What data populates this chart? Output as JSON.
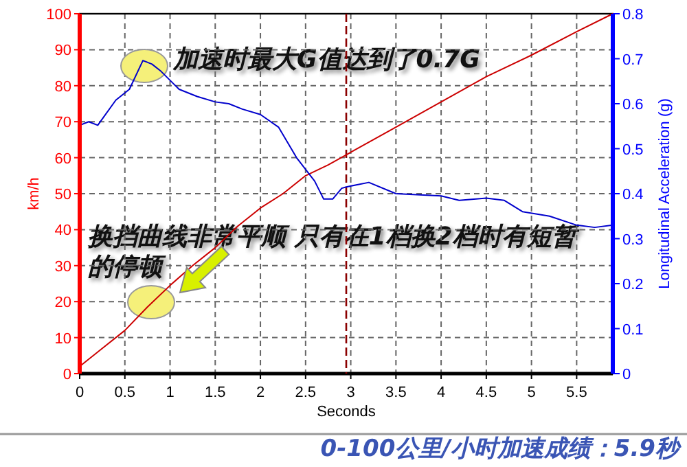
{
  "chart_data": {
    "type": "line",
    "xlabel": "Seconds",
    "ylabel": "km/h",
    "y2label": "Longitudinal Acceleration (g)",
    "xlim": [
      0,
      5.9
    ],
    "xticks": [
      0,
      0.5,
      1,
      1.5,
      2,
      2.5,
      3,
      3.5,
      4,
      4.5,
      5,
      5.5
    ],
    "ylim": [
      0,
      100
    ],
    "yticks": [
      0,
      10,
      20,
      30,
      40,
      50,
      60,
      70,
      80,
      90,
      100
    ],
    "y2lim": [
      0,
      0.8
    ],
    "y2ticks": [
      0,
      0.1,
      0.2,
      0.3,
      0.4,
      0.5,
      0.6,
      0.7,
      0.8
    ],
    "grid": true,
    "marker": "none",
    "line_style": "solid",
    "series": [
      {
        "color": "#cc0000",
        "x": [
          0,
          0.25,
          0.5,
          0.75,
          1,
          1.25,
          1.5,
          1.75,
          2,
          2.25,
          2.5,
          2.75,
          3,
          3.5,
          4,
          4.5,
          5,
          5.5,
          5.9
        ],
        "values": [
          2,
          7,
          12,
          18.5,
          24.5,
          30,
          35,
          41,
          46,
          50,
          55,
          58,
          61.5,
          68.5,
          75.5,
          82.5,
          88.5,
          95,
          100
        ]
      },
      {
        "color": "#0000cc",
        "axis": "y2",
        "x": [
          0,
          0.1,
          0.2,
          0.4,
          0.55,
          0.7,
          0.8,
          0.9,
          1.1,
          1.3,
          1.5,
          1.65,
          1.8,
          2.0,
          2.2,
          2.4,
          2.6,
          2.7,
          2.8,
          2.9,
          2.95,
          3.2,
          3.5,
          4.0,
          4.2,
          4.5,
          4.7,
          4.9,
          5.2,
          5.5,
          5.7,
          5.9
        ],
        "values": [
          0.552,
          0.56,
          0.552,
          0.608,
          0.632,
          0.696,
          0.688,
          0.672,
          0.632,
          0.616,
          0.604,
          0.6,
          0.588,
          0.576,
          0.548,
          0.48,
          0.428,
          0.388,
          0.388,
          0.412,
          0.415,
          0.425,
          0.4,
          0.395,
          0.385,
          0.39,
          0.385,
          0.36,
          0.35,
          0.33,
          0.325,
          0.33
        ]
      }
    ],
    "ref_lines": [
      {
        "axis": "x",
        "value": 2.95,
        "color": "#8b0000",
        "line_style": "dashed"
      }
    ],
    "annotations": [
      "加速时最大G值达到了0.7G",
      "换挡曲线非常平顺 只有在1档换2档时有短暂的停顿",
      "0-100公里/小时加速成绩：5.9秒"
    ]
  }
}
